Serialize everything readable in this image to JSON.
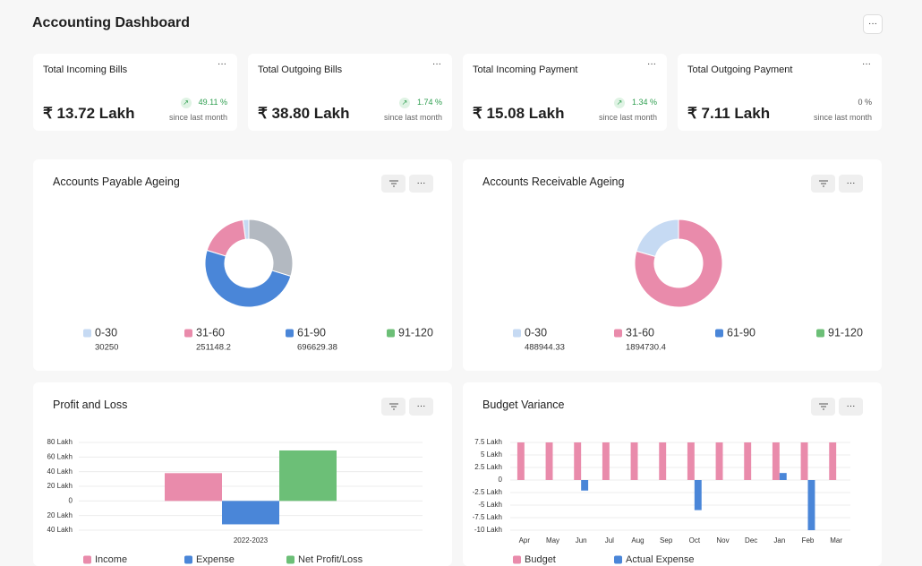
{
  "header": {
    "title": "Accounting Dashboard",
    "more": "···"
  },
  "cards": [
    {
      "title": "Total Incoming Bills",
      "value": "₹ 13.72 Lakh",
      "change": "49.11 %",
      "trend": "up",
      "caption": "since last month"
    },
    {
      "title": "Total Outgoing Bills",
      "value": "₹ 38.80 Lakh",
      "change": "1.74 %",
      "trend": "up",
      "caption": "since last month"
    },
    {
      "title": "Total Incoming Payment",
      "value": "₹ 15.08 Lakh",
      "change": "1.34 %",
      "trend": "up",
      "caption": "since last month"
    },
    {
      "title": "Total Outgoing Payment",
      "value": "₹ 7.11 Lakh",
      "change": "0 %",
      "trend": "flat",
      "caption": "since last month"
    }
  ],
  "chart_data": [
    {
      "type": "donut",
      "title": "Accounts Payable Ageing",
      "categories": [
        "0-30",
        "31-60",
        "61-90",
        "91-120",
        null
      ],
      "values": [
        30250,
        251148.2,
        696629.38,
        null,
        414000
      ],
      "colors": [
        "#c6daf3",
        "#e98bab",
        "#4a86d8",
        "#6cbf77",
        "#b3b9c1"
      ]
    },
    {
      "type": "donut",
      "title": "Accounts Receivable Ageing",
      "categories": [
        "0-30",
        "31-60",
        "61-90",
        "91-120"
      ],
      "values": [
        488944.33,
        1894730.4,
        null,
        null
      ],
      "colors": [
        "#c6daf3",
        "#e98bab",
        "#4a86d8",
        "#6cbf77"
      ]
    },
    {
      "type": "bar",
      "title": "Profit and Loss",
      "categories": [
        "2022-2023"
      ],
      "series": [
        {
          "name": "Income",
          "color": "#e98bab",
          "values": [
            38
          ]
        },
        {
          "name": "Expense",
          "color": "#4a86d8",
          "values": [
            -32
          ]
        },
        {
          "name": "Net Profit/Loss",
          "color": "#6cbf77",
          "values": [
            69
          ]
        }
      ],
      "ylim": [
        -40,
        80
      ],
      "yticks": [
        {
          "value": -40,
          "label": "40 Lakh"
        },
        {
          "value": -20,
          "label": "20 Lakh"
        },
        0,
        {
          "value": 20,
          "label": "20 Lakh"
        },
        {
          "value": 40,
          "label": "40 Lakh"
        },
        {
          "value": 60,
          "label": "60 Lakh"
        },
        {
          "value": 80,
          "label": "80 Lakh"
        }
      ],
      "grid": true
    },
    {
      "type": "bar",
      "title": "Budget Variance",
      "categories": [
        "Apr",
        "May",
        "Jun",
        "Jul",
        "Aug",
        "Sep",
        "Oct",
        "Nov",
        "Dec",
        "Jan",
        "Feb",
        "Mar"
      ],
      "series": [
        {
          "name": "Budget",
          "color": "#e98bab",
          "values": [
            7.5,
            7.5,
            7.5,
            7.5,
            7.5,
            7.5,
            7.5,
            7.5,
            7.5,
            7.5,
            7.5,
            7.5
          ]
        },
        {
          "name": "Actual Expense",
          "color": "#4a86d8",
          "values": [
            0,
            0,
            -2.1,
            0,
            0,
            0,
            -6,
            0,
            0,
            1.4,
            -10,
            0
          ]
        }
      ],
      "ylim": [
        -10,
        7.5
      ],
      "yticks": [
        {
          "value": -10,
          "label": "-10 Lakh"
        },
        {
          "value": -7.5,
          "label": "-7.5 Lakh"
        },
        {
          "value": -5,
          "label": "-5 Lakh"
        },
        {
          "value": -2.5,
          "label": "-2.5 Lakh"
        },
        0,
        {
          "value": 2.5,
          "label": "2.5 Lakh"
        },
        {
          "value": 5,
          "label": "5 Lakh"
        },
        {
          "value": 7.5,
          "label": "7.5 Lakh"
        }
      ],
      "grid": true
    }
  ]
}
